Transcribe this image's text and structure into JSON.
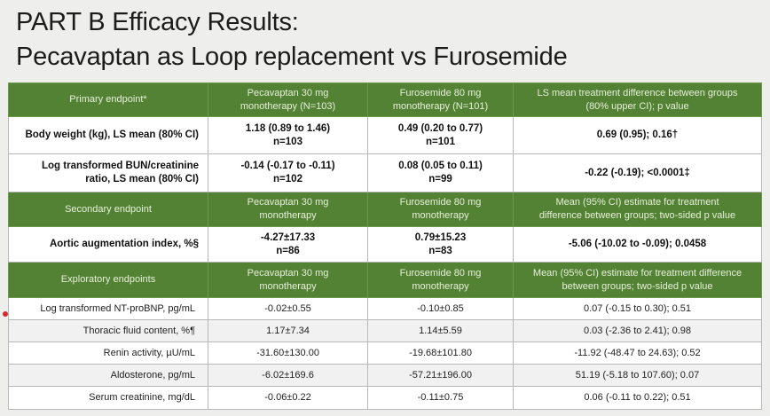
{
  "title": {
    "line1": "PART B Efficacy Results:",
    "line2": "Pecavaptan as Loop replacement vs Furosemide"
  },
  "primary": {
    "header": [
      "Primary endpoint*",
      "Pecavaptan 30 mg",
      "monotherapy (N=103)",
      "Furosemide 80 mg",
      "monotherapy (N=101)",
      "LS mean treatment difference between groups",
      "(80% upper CI); p value"
    ],
    "rows": [
      {
        "label": "Body weight (kg), LS mean (80% CI)",
        "label2": "",
        "pec": "1.18 (0.89 to 1.46)",
        "pec_n": "n=103",
        "furo": "0.49 (0.20 to 0.77)",
        "furo_n": "n=101",
        "diff": "0.69 (0.95); 0.16†"
      },
      {
        "label": "Log transformed BUN/creatinine",
        "label2": "ratio, LS mean (80% CI)",
        "pec": "-0.14 (-0.17 to -0.11)",
        "pec_n": "n=102",
        "furo": "0.08 (0.05 to 0.11)",
        "furo_n": "n=99",
        "diff": "-0.22 (-0.19); <0.0001‡"
      }
    ]
  },
  "secondary": {
    "header": [
      "Secondary endpoint",
      "Pecavaptan 30 mg",
      "monotherapy",
      "Furosemide 80 mg",
      "monotherapy",
      "Mean (95% CI) estimate for treatment",
      "difference between groups; two-sided p value"
    ],
    "rows": [
      {
        "label": "Aortic augmentation index, %§",
        "pec": "-4.27±17.33",
        "pec_n": "n=86",
        "furo": "0.79±15.23",
        "furo_n": "n=83",
        "diff": "-5.06 (-10.02 to -0.09); 0.0458"
      }
    ]
  },
  "exploratory": {
    "header": [
      "Exploratory endpoints",
      "Pecavaptan 30 mg",
      "monotherapy",
      "Furosemide 80 mg",
      "monotherapy",
      "Mean (95% CI) estimate for treatment difference",
      "between groups; two-sided p value"
    ],
    "rows": [
      {
        "label": "Log transformed NT-proBNP, pg/mL",
        "pec": "-0.02±0.55",
        "furo": "-0.10±0.85",
        "diff": "0.07 (-0.15 to 0.30); 0.51"
      },
      {
        "label": "Thoracic fluid content, %¶",
        "pec": "1.17±7.34",
        "furo": "1.14±5.59",
        "diff": "0.03 (-2.36 to 2.41); 0.98"
      },
      {
        "label": "Renin activity, µU/mL",
        "pec": "-31.60±130.00",
        "furo": "-19.68±101.80",
        "diff": "-11.92 (-48.47 to 24.63); 0.52"
      },
      {
        "label": "Aldosterone, pg/mL",
        "pec": "-6.02±169.6",
        "furo": "-57.21±196.00",
        "diff": "51.19 (-5.18 to 107.60); 0.07"
      },
      {
        "label": "Serum creatinine, mg/dL",
        "pec": "-0.06±0.22",
        "furo": "-0.11±0.75",
        "diff": "0.06 (-0.11 to 0.22); 0.51"
      }
    ]
  }
}
